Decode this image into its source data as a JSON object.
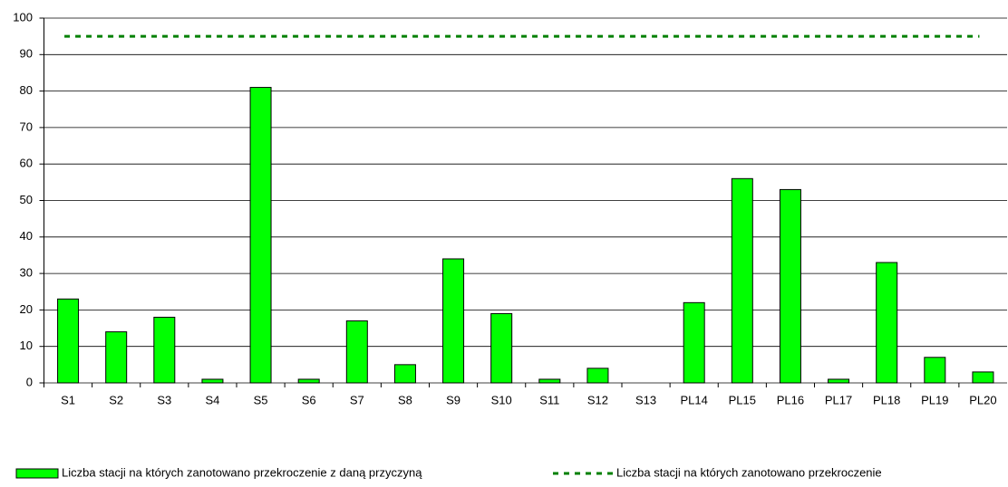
{
  "chart_data": {
    "type": "bar",
    "categories": [
      "S1",
      "S2",
      "S3",
      "S4",
      "S5",
      "S6",
      "S7",
      "S8",
      "S9",
      "S10",
      "S11",
      "S12",
      "S13",
      "PL14",
      "PL15",
      "PL16",
      "PL17",
      "PL18",
      "PL19",
      "PL20"
    ],
    "series": [
      {
        "name": "Liczba stacji na których zanotowano przekroczenie z daną przyczyną",
        "type": "bar",
        "color": "#00ff00",
        "values": [
          23,
          14,
          18,
          1,
          81,
          1,
          17,
          5,
          34,
          19,
          1,
          4,
          0,
          22,
          56,
          53,
          1,
          33,
          7,
          3
        ]
      },
      {
        "name": "Liczba stacji na których zanotowano przekroczenie",
        "type": "line",
        "color": "#008000",
        "values": [
          95,
          95,
          95,
          95,
          95,
          95,
          95,
          95,
          95,
          95,
          95,
          95,
          95,
          95,
          95,
          95,
          95,
          95,
          95,
          95
        ]
      }
    ],
    "ylim": [
      0,
      100
    ],
    "yticks": [
      0,
      10,
      20,
      30,
      40,
      50,
      60,
      70,
      80,
      90,
      100
    ],
    "grid": true,
    "legend": "bottom"
  }
}
